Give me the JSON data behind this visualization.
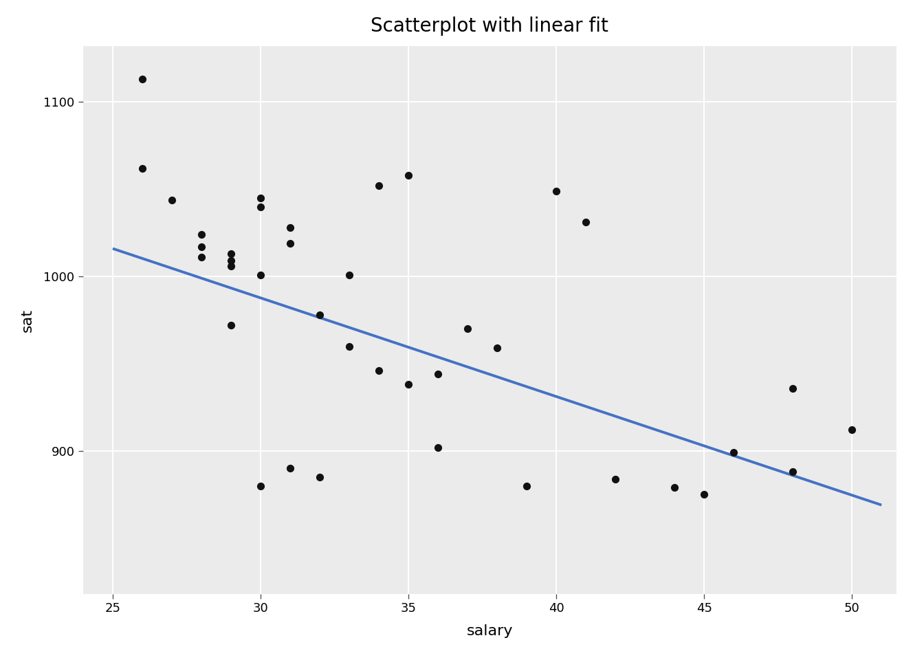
{
  "title": "Scatterplot with linear fit",
  "xlabel": "salary",
  "ylabel": "sat",
  "bg_color": "#EBEBEB",
  "fig_color": "#ffffff",
  "point_color": "#111111",
  "line_color": "#4472C4",
  "grid_color": "#ffffff",
  "point_size": 65,
  "line_width": 2.8,
  "xlim": [
    24.0,
    51.5
  ],
  "ylim": [
    818,
    1132
  ],
  "xticks": [
    25,
    30,
    35,
    40,
    45,
    50
  ],
  "yticks": [
    900,
    1000,
    1100
  ],
  "salary": [
    26,
    26,
    27,
    28,
    28,
    28,
    29,
    29,
    29,
    29,
    30,
    30,
    30,
    30,
    31,
    31,
    31,
    32,
    32,
    33,
    33,
    34,
    34,
    35,
    35,
    36,
    36,
    37,
    38,
    39,
    40,
    41,
    42,
    44,
    45,
    46,
    48,
    48,
    50
  ],
  "sat": [
    1113,
    1062,
    1044,
    1024,
    1017,
    1011,
    1013,
    1009,
    1006,
    972,
    1045,
    1040,
    1001,
    880,
    1028,
    1019,
    890,
    885,
    978,
    1001,
    960,
    1052,
    946,
    1058,
    938,
    944,
    902,
    970,
    959,
    880,
    1049,
    1031,
    884,
    879,
    875,
    899,
    888,
    936,
    912
  ],
  "fit_x": [
    25.0,
    51.0
  ],
  "fit_y": [
    1016,
    869
  ],
  "title_fontsize": 20,
  "axis_label_fontsize": 16,
  "tick_fontsize": 13
}
